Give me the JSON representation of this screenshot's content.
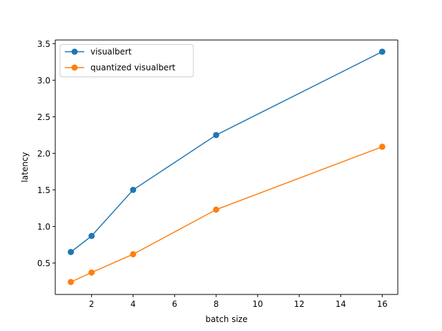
{
  "chart_data": {
    "type": "line",
    "title": "",
    "xlabel": "batch size",
    "ylabel": "latency",
    "x": [
      1,
      2,
      4,
      8,
      16
    ],
    "series": [
      {
        "name": "visualbert",
        "color": "#1f77b4",
        "values": [
          0.65,
          0.87,
          1.5,
          2.25,
          3.39
        ]
      },
      {
        "name": "quantized visualbert",
        "color": "#ff7f0e",
        "values": [
          0.24,
          0.37,
          0.62,
          1.23,
          2.09
        ]
      }
    ],
    "xlim": [
      0.25,
      16.75
    ],
    "ylim": [
      0.07,
      3.55
    ],
    "xticks": [
      2,
      4,
      6,
      8,
      10,
      12,
      14,
      16
    ],
    "xtick_labels": [
      "2",
      "4",
      "6",
      "8",
      "10",
      "12",
      "14",
      "16"
    ],
    "yticks": [
      0.5,
      1.0,
      1.5,
      2.0,
      2.5,
      3.0,
      3.5
    ],
    "ytick_labels": [
      "0.5",
      "1.0",
      "1.5",
      "2.0",
      "2.5",
      "3.0",
      "3.5"
    ],
    "grid": false,
    "legend": "upper-left",
    "marker": "circle"
  }
}
